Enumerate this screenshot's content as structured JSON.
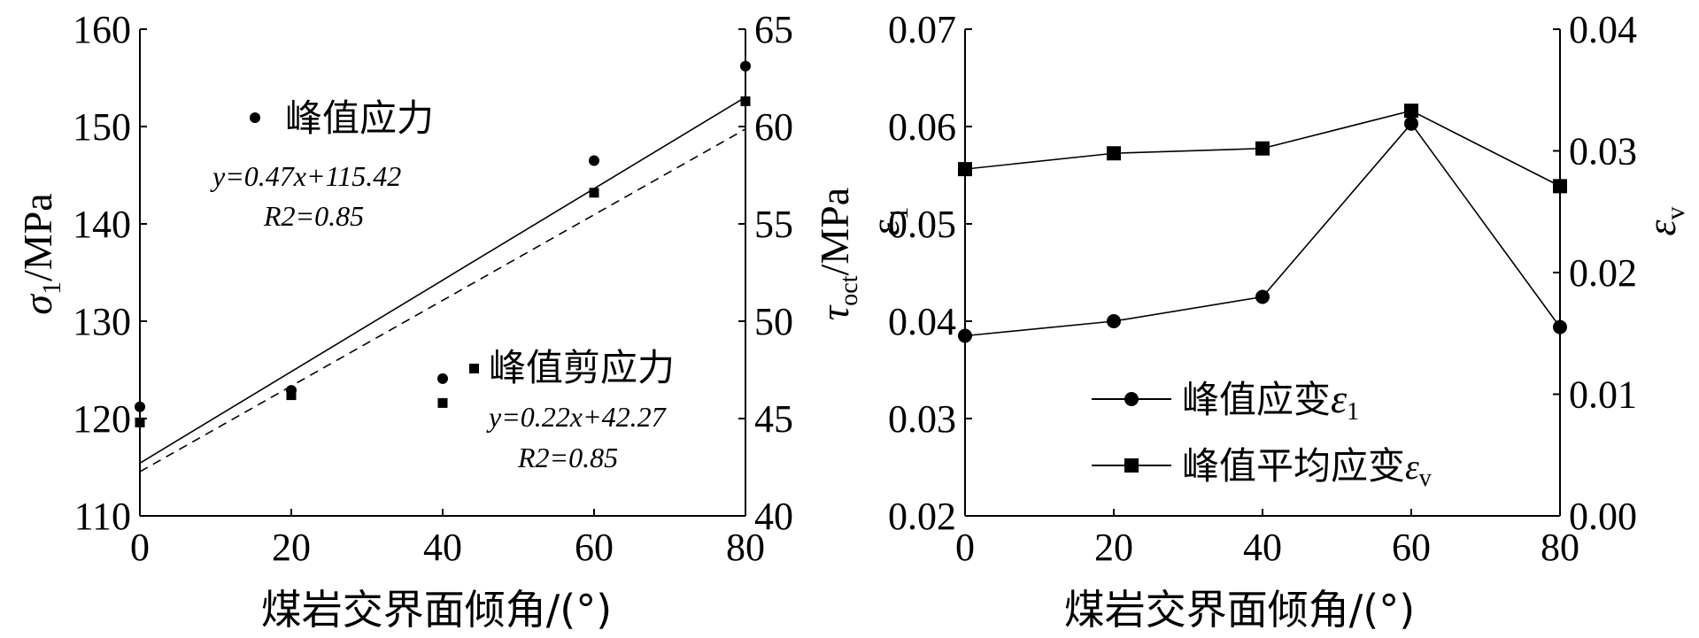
{
  "chart_data": [
    {
      "type": "scatter",
      "xlabel": "煤岩交界面倾角/(°)",
      "ylabel_left": "σ1/MPa",
      "ylabel_right": "τoct/MPa",
      "xlim": [
        0,
        80
      ],
      "ylim_left": [
        110,
        160
      ],
      "ylim_right": [
        40,
        65
      ],
      "xticks": [
        "0",
        "20",
        "40",
        "60",
        "80"
      ],
      "yticks_left": [
        "110",
        "120",
        "130",
        "140",
        "150",
        "160"
      ],
      "yticks_right": [
        "40",
        "45",
        "50",
        "55",
        "60",
        "65"
      ],
      "series": [
        {
          "name": "峰值应力",
          "axis": "left",
          "marker": "circle",
          "x": [
            0,
            20,
            40,
            60,
            80
          ],
          "y": [
            121.2,
            122.9,
            124.1,
            146.5,
            156.2
          ]
        },
        {
          "name": "峰值剪应力",
          "axis": "right",
          "marker": "square",
          "x": [
            0,
            20,
            40,
            60,
            80
          ],
          "y": [
            44.8,
            46.2,
            45.8,
            56.6,
            61.3
          ]
        }
      ],
      "fits": [
        {
          "series": "峰值应力",
          "axis": "left",
          "style": "solid",
          "slope": 0.47,
          "intercept": 115.42,
          "equation": "y=0.47x+115.42",
          "r2": "R2=0.85"
        },
        {
          "series": "峰值剪应力",
          "axis": "right",
          "style": "dashed",
          "slope": 0.22,
          "intercept": 42.27,
          "equation": "y=0.22x+42.27",
          "r2": "R2=0.85"
        }
      ],
      "legend": [
        {
          "label": "峰值应力",
          "marker": "circle",
          "placement": "upper-left"
        },
        {
          "label": "峰值剪应力",
          "marker": "square",
          "placement": "lower-right"
        }
      ],
      "grid": false
    },
    {
      "type": "line",
      "xlabel": "煤岩交界面倾角/(°)",
      "ylabel_left": "ε1",
      "ylabel_right": "εv",
      "xlim": [
        0,
        80
      ],
      "ylim_left": [
        0.02,
        0.07
      ],
      "ylim_right": [
        0.0,
        0.04
      ],
      "xticks": [
        "0",
        "20",
        "40",
        "60",
        "80"
      ],
      "yticks_left": [
        "0.02",
        "0.03",
        "0.04",
        "0.05",
        "0.06",
        "0.07"
      ],
      "yticks_right": [
        "0.00",
        "0.01",
        "0.02",
        "0.03",
        "0.04"
      ],
      "series": [
        {
          "name": "峰值应变ε1",
          "axis": "left",
          "marker": "circle",
          "x": [
            0,
            20,
            40,
            60,
            80
          ],
          "y": [
            0.0385,
            0.04,
            0.0425,
            0.0603,
            0.0394
          ]
        },
        {
          "name": "峰值平均应变εv",
          "axis": "right",
          "marker": "square",
          "x": [
            0,
            20,
            40,
            60,
            80
          ],
          "y": [
            0.0285,
            0.0298,
            0.0302,
            0.0333,
            0.0271
          ]
        }
      ],
      "legend_placement": "lower-left",
      "grid": false
    }
  ]
}
